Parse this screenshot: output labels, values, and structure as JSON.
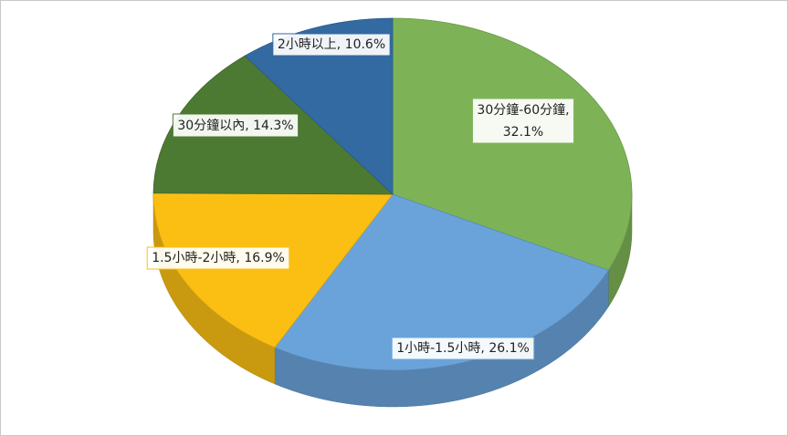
{
  "chart_data": {
    "type": "pie",
    "categories": [
      "30分鐘-60分鐘",
      "1小時-1.5小時",
      "1.5小時-2小時",
      "30分鐘以內",
      "2小時以上"
    ],
    "values": [
      32.1,
      26.1,
      16.9,
      14.3,
      10.6
    ],
    "value_labels": [
      "32.1%",
      "26.1%",
      "16.9%",
      "14.3%",
      "10.6%"
    ],
    "label_separator": ", ",
    "colors": [
      "#7db356",
      "#6aa3da",
      "#fbbf14",
      "#4d7a33",
      "#336aa1"
    ]
  }
}
